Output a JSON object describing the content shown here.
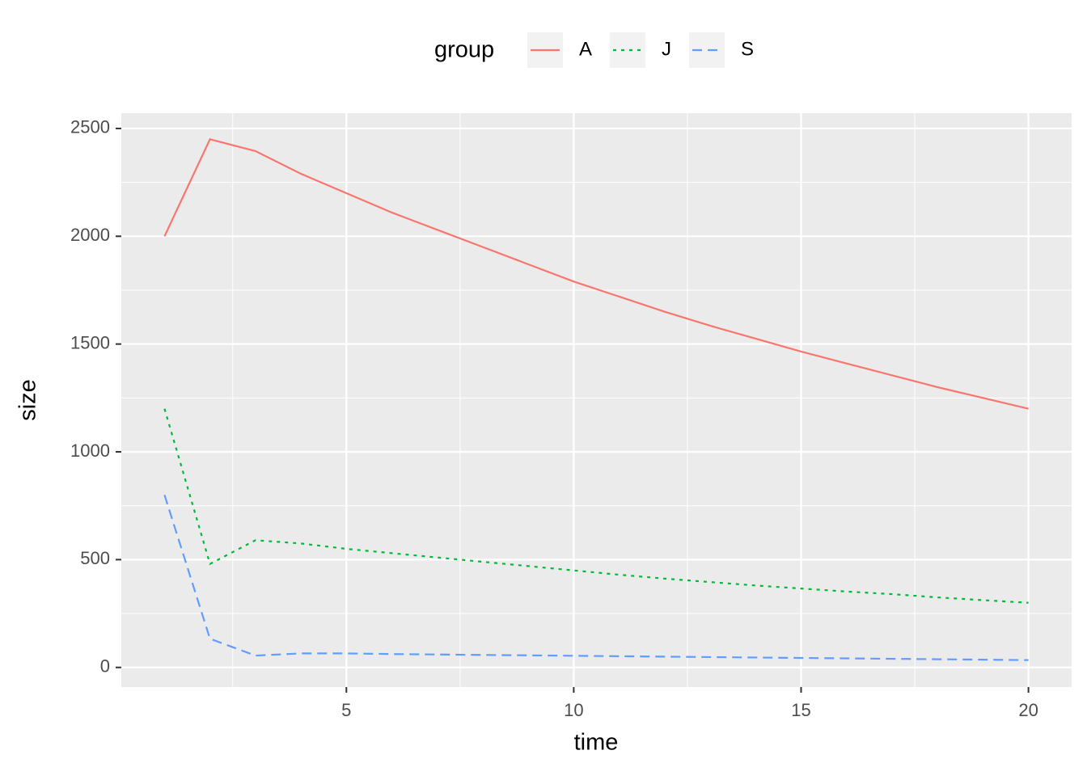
{
  "chart_data": {
    "type": "line",
    "x_label": "time",
    "y_label": "size",
    "legend_title": "group",
    "legend_position": "top",
    "grid": true,
    "x": [
      1,
      2,
      3,
      4,
      5,
      6,
      7,
      8,
      9,
      10,
      11,
      12,
      13,
      14,
      15,
      16,
      17,
      18,
      19,
      20
    ],
    "series": [
      {
        "name": "A",
        "color": "#f8766d",
        "linetype": "solid",
        "values": [
          2000,
          2450,
          2395,
          2290,
          2200,
          2110,
          2030,
          1950,
          1870,
          1790,
          1720,
          1650,
          1585,
          1525,
          1465,
          1410,
          1355,
          1300,
          1250,
          1200
        ]
      },
      {
        "name": "J",
        "color": "#00ba38",
        "linetype": "dotted",
        "values": [
          1200,
          480,
          590,
          575,
          550,
          530,
          510,
          490,
          470,
          450,
          430,
          412,
          396,
          380,
          366,
          352,
          340,
          325,
          312,
          300
        ]
      },
      {
        "name": "S",
        "color": "#619cff",
        "linetype": "dashed",
        "values": [
          800,
          133,
          55,
          65,
          65,
          62,
          60,
          58,
          56,
          54,
          52,
          50,
          48,
          46,
          44,
          42,
          40,
          38,
          36,
          34
        ]
      }
    ],
    "xlim": [
      0.05,
      20.95
    ],
    "xticks": [
      5,
      10,
      15,
      20
    ],
    "ylim": [
      -91,
      2571
    ],
    "yticks": [
      0,
      500,
      1000,
      1500,
      2000,
      2500
    ]
  }
}
